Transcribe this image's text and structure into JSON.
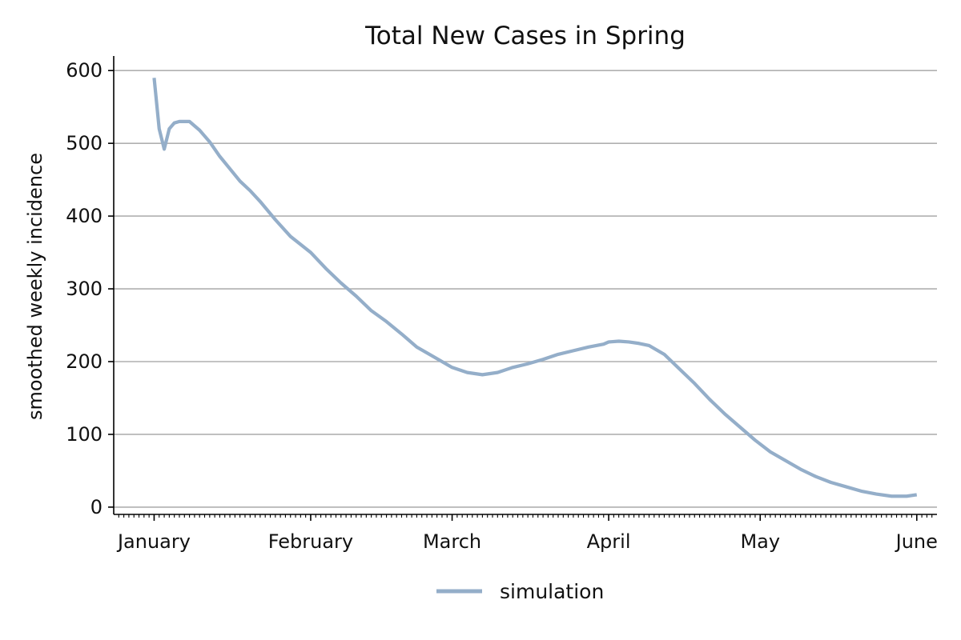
{
  "chart_data": {
    "type": "line",
    "title": "Total New Cases in Spring",
    "xlabel": "",
    "ylabel": "smoothed weekly incidence",
    "x_axis": {
      "type": "date",
      "range": [
        "2020-12-24",
        "2021-06-05"
      ],
      "tick_dates": [
        "2021-01-01",
        "2021-02-01",
        "2021-03-01",
        "2021-04-01",
        "2021-05-01",
        "2021-06-01"
      ],
      "tick_labels": [
        "January",
        "February",
        "March",
        "April",
        "May",
        "June"
      ],
      "minor_ticks": "daily"
    },
    "y_axis": {
      "range": [
        -10,
        620
      ],
      "ticks": [
        0,
        100,
        200,
        300,
        400,
        500,
        600
      ],
      "tick_labels": [
        "0",
        "100",
        "200",
        "300",
        "400",
        "500",
        "600"
      ]
    },
    "grid": "y-major",
    "legend": {
      "placement": "bottom-center",
      "entries": [
        "simulation"
      ]
    },
    "series": [
      {
        "name": "simulation",
        "color": "#94aec9",
        "x": [
          "2021-01-01",
          "2021-01-02",
          "2021-01-03",
          "2021-01-04",
          "2021-01-05",
          "2021-01-06",
          "2021-01-07",
          "2021-01-08",
          "2021-01-10",
          "2021-01-12",
          "2021-01-14",
          "2021-01-16",
          "2021-01-18",
          "2021-01-20",
          "2021-01-22",
          "2021-01-25",
          "2021-01-28",
          "2021-02-01",
          "2021-02-04",
          "2021-02-07",
          "2021-02-10",
          "2021-02-13",
          "2021-02-16",
          "2021-02-19",
          "2021-02-22",
          "2021-02-25",
          "2021-03-01",
          "2021-03-04",
          "2021-03-07",
          "2021-03-10",
          "2021-03-13",
          "2021-03-16",
          "2021-03-19",
          "2021-03-22",
          "2021-03-25",
          "2021-03-28",
          "2021-03-31",
          "2021-04-01",
          "2021-04-03",
          "2021-04-05",
          "2021-04-07",
          "2021-04-09",
          "2021-04-12",
          "2021-04-15",
          "2021-04-18",
          "2021-04-21",
          "2021-04-24",
          "2021-04-27",
          "2021-04-30",
          "2021-05-03",
          "2021-05-06",
          "2021-05-09",
          "2021-05-12",
          "2021-05-15",
          "2021-05-18",
          "2021-05-21",
          "2021-05-24",
          "2021-05-27",
          "2021-05-30",
          "2021-06-01"
        ],
        "y": [
          590,
          520,
          492,
          520,
          528,
          530,
          530,
          530,
          518,
          502,
          482,
          465,
          448,
          435,
          420,
          395,
          372,
          350,
          328,
          308,
          290,
          270,
          255,
          238,
          220,
          208,
          192,
          185,
          182,
          185,
          192,
          197,
          203,
          210,
          215,
          220,
          224,
          227,
          228,
          227,
          225,
          222,
          210,
          190,
          170,
          148,
          128,
          110,
          92,
          76,
          64,
          52,
          42,
          34,
          28,
          22,
          18,
          15,
          15,
          17
        ]
      }
    ]
  }
}
